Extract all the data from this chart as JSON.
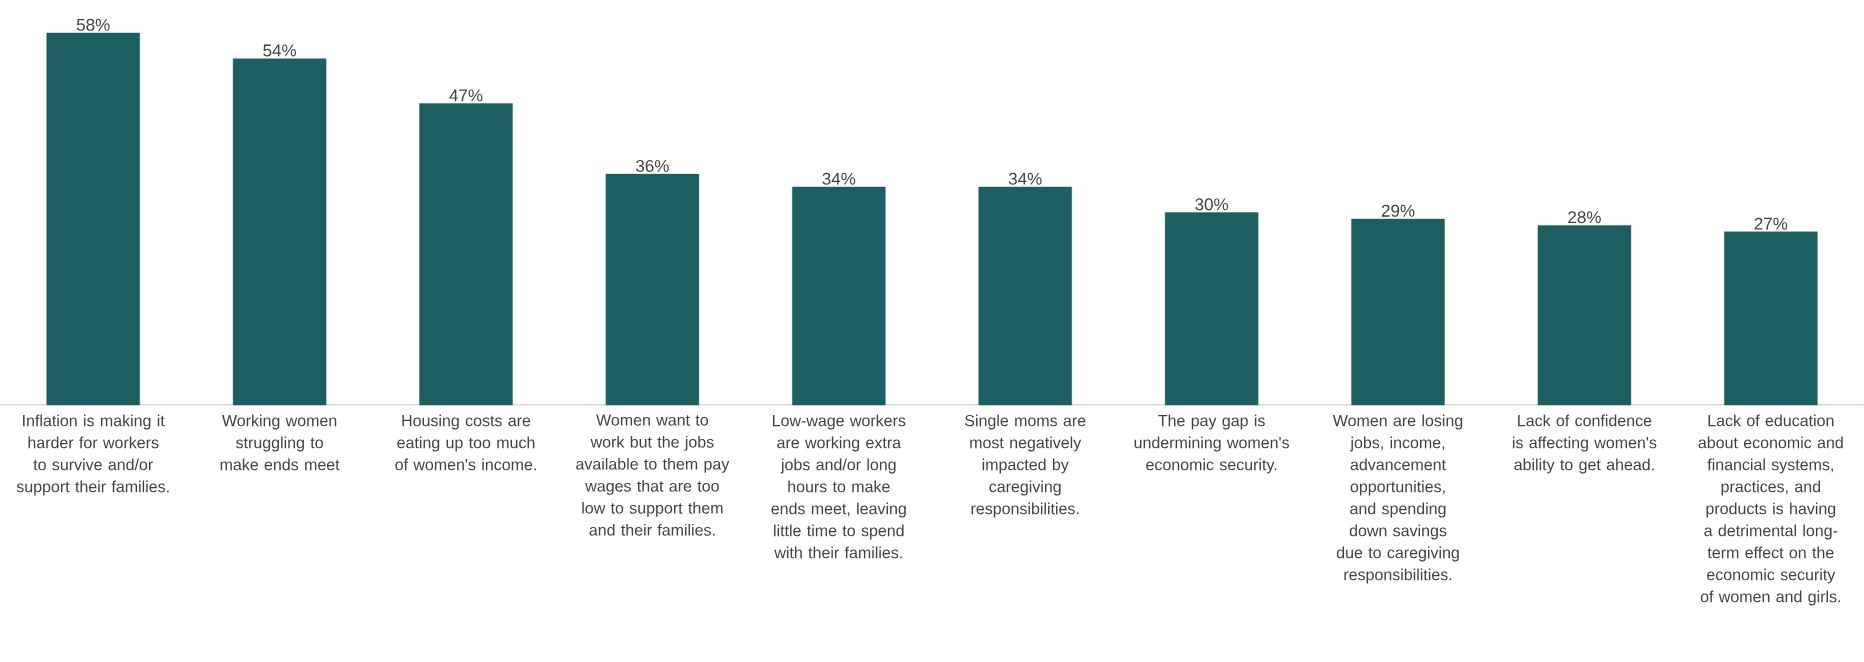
{
  "chart_data": {
    "type": "bar",
    "categories": [
      "Inflation is making it harder for workers to survive and/or support their families.",
      "Working women struggling to make ends meet",
      "Housing costs are eating up too much of women's income.",
      "Women want to work but the jobs available to them pay wages that are too low to support them and their families.",
      "Low-wage workers are working extra jobs and/or long hours to make ends meet, leaving little time to spend with their families.",
      "Single moms are most negatively impacted by caregiving responsibilities.",
      "The pay gap is undermining women's economic security.",
      "Women are losing jobs, income, advancement opportunities, and spending down savings due to caregiving responsibilities.",
      "Lack of confidence is affecting women's ability to get ahead.",
      "Lack of education about economic and financial systems, practices, and products is having a detrimental long-term effect on the economic security of women and girls."
    ],
    "values": [
      58,
      54,
      47,
      36,
      34,
      34,
      30,
      29,
      28,
      27
    ],
    "value_labels": [
      "58%",
      "54%",
      "47%",
      "36%",
      "34%",
      "34%",
      "30%",
      "29%",
      "28%",
      "27%"
    ],
    "color": "#1d5f61"
  }
}
